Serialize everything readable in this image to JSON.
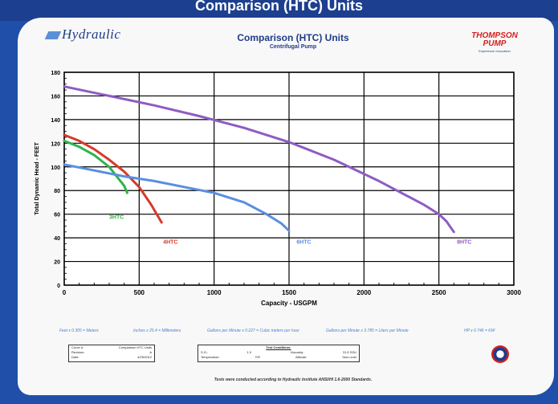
{
  "banner_title": "Comparison (HTC) Units",
  "logo_left_text": "Hydraulic",
  "logo_right": {
    "line1": "THOMPSON",
    "line2": "PUMP",
    "tagline": "Experience Innovation"
  },
  "header": {
    "title": "Comparison (HTC) Units",
    "subtitle": "Centrifugal Pump"
  },
  "conversions": [
    "Feet x 0.305 = Meters",
    "Inches x 25.4 = Millimeters",
    "Gallons per Minute x 0.227 = Cubic meters per hour",
    "Gallons per Minute x 3.785 = Liters per Minute",
    "HP x 0.746 = KW"
  ],
  "info_box": {
    "rows": [
      {
        "k": "Curve #:",
        "v": "Comparison HTC Units"
      },
      {
        "k": "Revision:",
        "v": "A"
      },
      {
        "k": "Date:",
        "v": "4/25/2012"
      }
    ]
  },
  "test_conditions": {
    "heading": "Test Conditions:",
    "rows": [
      {
        "k1": "S.G.:",
        "v1": "1.0",
        "k2": "Viscosity:",
        "v2": "31.5 SSU"
      },
      {
        "k1": "Temperature:",
        "v1": "70F",
        "k2": "Altitude:",
        "v2": "Sea Level"
      }
    ]
  },
  "footer_note": "Tests were conducted according to Hydraulic Institute ANSI/HI 1.6-2000 Standards.",
  "colors": {
    "frame": "#1f4fa8",
    "banner": "#1d3f8f",
    "accent": "#1f3c88"
  },
  "chart_data": {
    "type": "line",
    "xlabel": "Capacity - USGPM",
    "ylabel": "Total Dynamic Head - FEET",
    "xlim": [
      0,
      3000
    ],
    "ylim": [
      0,
      180
    ],
    "xticks": [
      0,
      500,
      1000,
      1500,
      2000,
      2500,
      3000
    ],
    "yticks": [
      0,
      20,
      40,
      60,
      80,
      100,
      120,
      140,
      160,
      180
    ],
    "grid": true,
    "series": [
      {
        "name": "3HTC",
        "color": "#2fb34a",
        "label_at": [
          300,
          56
        ],
        "points": [
          [
            0,
            122
          ],
          [
            100,
            117
          ],
          [
            200,
            110
          ],
          [
            300,
            100
          ],
          [
            350,
            92
          ],
          [
            400,
            84
          ],
          [
            420,
            78
          ]
        ]
      },
      {
        "name": "4HTC",
        "color": "#d63a2a",
        "label_at": [
          660,
          35
        ],
        "points": [
          [
            0,
            127
          ],
          [
            100,
            122
          ],
          [
            200,
            115
          ],
          [
            300,
            106
          ],
          [
            400,
            96
          ],
          [
            500,
            83
          ],
          [
            580,
            68
          ],
          [
            650,
            53
          ]
        ]
      },
      {
        "name": "6HTC",
        "color": "#5b8ee0",
        "label_at": [
          1550,
          35
        ],
        "points": [
          [
            0,
            102
          ],
          [
            200,
            97
          ],
          [
            400,
            92
          ],
          [
            600,
            88
          ],
          [
            800,
            83
          ],
          [
            1000,
            78
          ],
          [
            1200,
            70
          ],
          [
            1350,
            60
          ],
          [
            1450,
            52
          ],
          [
            1500,
            46
          ]
        ]
      },
      {
        "name": "8HTC",
        "color": "#8e5cc2",
        "label_at": [
          2620,
          35
        ],
        "points": [
          [
            0,
            168
          ],
          [
            300,
            160
          ],
          [
            600,
            152
          ],
          [
            900,
            143
          ],
          [
            1200,
            133
          ],
          [
            1500,
            121
          ],
          [
            1800,
            106
          ],
          [
            2100,
            88
          ],
          [
            2400,
            68
          ],
          [
            2500,
            60
          ],
          [
            2550,
            54
          ],
          [
            2600,
            45
          ]
        ]
      }
    ]
  }
}
